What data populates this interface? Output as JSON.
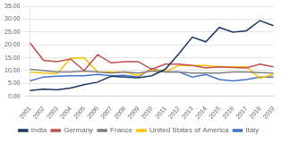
{
  "chart_data": {
    "type": "line",
    "categories": [
      "2001",
      "2002",
      "2003",
      "2004",
      "2005",
      "2006",
      "2007",
      "2008",
      "2009",
      "2010",
      "2011",
      "2012",
      "2013",
      "2014",
      "2015",
      "2016",
      "2017",
      "2018",
      "2019"
    ],
    "series": [
      {
        "name": "India",
        "color": "#1f3864",
        "values": [
          2.2,
          2.8,
          2.5,
          3.2,
          4.5,
          5.5,
          7.8,
          7.5,
          7.2,
          8.0,
          10.5,
          16.5,
          23.0,
          21.2,
          26.8,
          25.0,
          25.5,
          29.5,
          27.5
        ]
      },
      {
        "name": "Germany",
        "color": "#c0504d",
        "values": [
          20.8,
          14.0,
          13.5,
          14.5,
          10.0,
          16.2,
          13.0,
          13.5,
          13.5,
          10.5,
          12.5,
          12.5,
          12.0,
          11.0,
          11.5,
          11.2,
          11.0,
          12.5,
          11.5
        ]
      },
      {
        "name": "France",
        "color": "#808080",
        "values": [
          10.5,
          10.0,
          9.5,
          9.5,
          9.8,
          9.5,
          9.0,
          9.5,
          9.0,
          9.8,
          9.5,
          9.5,
          9.0,
          9.0,
          9.0,
          9.5,
          9.5,
          9.2,
          9.0
        ]
      },
      {
        "name": "United States of America",
        "color": "#ffc000",
        "values": [
          9.5,
          9.0,
          8.8,
          14.8,
          15.0,
          9.5,
          9.5,
          9.5,
          8.0,
          10.5,
          9.5,
          12.0,
          12.0,
          12.0,
          11.5,
          11.5,
          11.5,
          7.0,
          8.5
        ]
      },
      {
        "name": "Italy",
        "color": "#4472c4",
        "values": [
          6.0,
          7.5,
          7.8,
          8.0,
          8.0,
          8.5,
          8.0,
          8.2,
          7.5,
          10.8,
          9.5,
          9.5,
          7.5,
          8.5,
          6.5,
          6.0,
          6.5,
          7.5,
          7.5
        ]
      }
    ],
    "ylim": [
      0,
      35
    ],
    "yticks": [
      {
        "value": 0,
        "label": "0.00"
      },
      {
        "value": 5,
        "label": "5.00"
      },
      {
        "value": 10,
        "label": "10.00"
      },
      {
        "value": 15,
        "label": "15.00"
      },
      {
        "value": 20,
        "label": "20.00"
      },
      {
        "value": 25,
        "label": "25.00"
      },
      {
        "value": 30,
        "label": "30.00"
      },
      {
        "value": 35,
        "label": "35.00"
      }
    ],
    "grid": true,
    "legend": "bottom"
  }
}
